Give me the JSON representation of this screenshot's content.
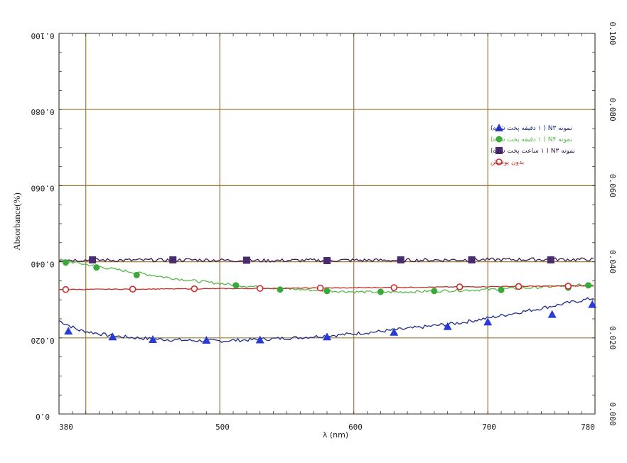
{
  "chart_data": {
    "type": "line",
    "xlabel": "λ (nm)",
    "ylabel": "Absorbance(%)",
    "xlim": [
      380,
      780
    ],
    "ylim": [
      0,
      0.1
    ],
    "x_ticks": [
      "380",
      "500",
      "600",
      "700",
      "780"
    ],
    "y_ticks_left": [
      "0.0",
      "0.020",
      "0.040",
      "0.060",
      "0.080",
      "0.100"
    ],
    "y_ticks_right": [
      "0.000",
      "0.020",
      "0.040",
      "0.060",
      "0.080",
      "0.100"
    ],
    "grid": true,
    "legend_position": "upper-right",
    "series": [
      {
        "name": "نمونه N۳ ( ۱ دقیقه پخت شده)",
        "color": "#1f2d8a",
        "marker": "triangle",
        "marker_color": "#2a3ad6",
        "x": [
          380,
          395,
          420,
          450,
          480,
          500,
          530,
          560,
          590,
          620,
          650,
          680,
          700,
          720,
          740,
          760,
          780
        ],
        "y": [
          0.0245,
          0.022,
          0.0205,
          0.0197,
          0.0193,
          0.0192,
          0.0196,
          0.0201,
          0.0208,
          0.0217,
          0.0228,
          0.024,
          0.0252,
          0.0265,
          0.0278,
          0.0292,
          0.0305
        ]
      },
      {
        "name": "نمونه N۴ ( ۱ دقیقه پخت شده)",
        "color": "#5ab84a",
        "marker": "circle",
        "marker_color": "#3aa83a",
        "x": [
          380,
          400,
          420,
          440,
          460,
          480,
          500,
          520,
          540,
          560,
          580,
          600,
          620,
          640,
          660,
          680,
          700,
          720,
          740,
          760,
          780
        ],
        "y": [
          0.0405,
          0.0393,
          0.0381,
          0.037,
          0.0359,
          0.035,
          0.0343,
          0.0336,
          0.0331,
          0.0327,
          0.0324,
          0.0321,
          0.032,
          0.0321,
          0.0323,
          0.0325,
          0.0327,
          0.033,
          0.0333,
          0.0337,
          0.034
        ]
      },
      {
        "name": "نمونه N۳ ( ۱ ساعت پخت شده)",
        "color": "#3a1a4a",
        "marker": "square",
        "marker_color": "#4a2a6e",
        "x": [
          380,
          430,
          480,
          530,
          580,
          630,
          680,
          730,
          780
        ],
        "y": [
          0.0405,
          0.0404,
          0.0405,
          0.0403,
          0.0404,
          0.0404,
          0.0405,
          0.0406,
          0.0406
        ]
      },
      {
        "name": "بدون پوشش",
        "color": "#c0302a",
        "marker": "open-circle",
        "marker_color": "#d02a2a",
        "x": [
          380,
          480,
          580,
          680,
          780
        ],
        "y": [
          0.0327,
          0.0329,
          0.0331,
          0.0334,
          0.0337
        ]
      }
    ]
  }
}
